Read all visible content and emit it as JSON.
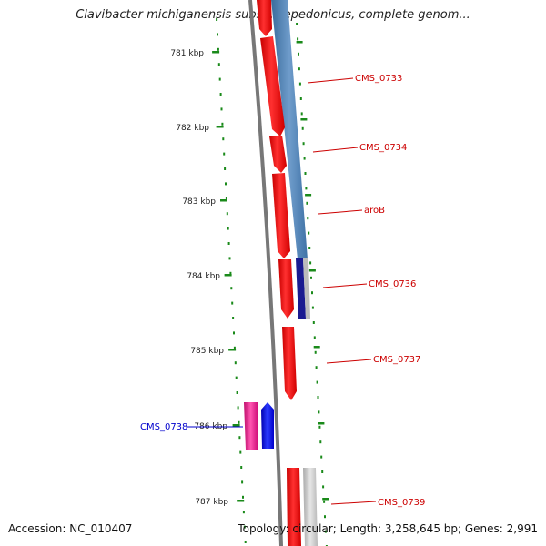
{
  "title": "Clavibacter michiganensis subsp. sepedonicus, complete genom...",
  "accession": "Accession: NC_010407",
  "topology": "Topology: circular; Length: 3,258,645 bp; Genes: 2,991",
  "ticks": [
    "781 kbp",
    "782 kbp",
    "783 kbp",
    "784 kbp",
    "785 kbp",
    "786 kbp",
    "787 kbp"
  ],
  "genes": {
    "CMS_0733": "CMS_0733",
    "CMS_0734": "CMS_0734",
    "aroB": "aroB",
    "CMS_0736": "CMS_0736",
    "CMS_0737": "CMS_0737",
    "CMS_0738": "CMS_0738",
    "CMS_0739": "CMS_0739"
  },
  "colors": {
    "cds": "#ff0000",
    "cds_highlight": "#e8148c",
    "rna": "#0000ee",
    "feature_blue": "#4a7fb0",
    "feature_gray": "#c8c8c8",
    "backbone": "#777777",
    "tick": "#1a8a1a",
    "label_red": "#cc0000",
    "label_blue": "#0000cc"
  }
}
